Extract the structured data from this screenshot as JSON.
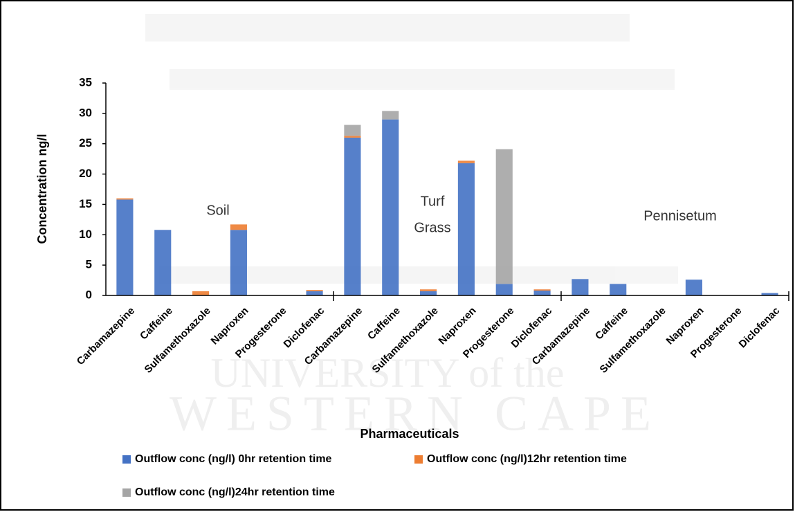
{
  "chart_data": {
    "type": "stacked_bar",
    "x_label": "Pharmaceuticals",
    "y_label": "Concentration ng/l",
    "categories": [
      "Carbamazepine",
      "Caffeine",
      "Sulfamethoxazole",
      "Naproxen",
      "Progesterone",
      "Diclofenac",
      "Carbamazepine",
      "Caffeine",
      "Sulfamethoxazole",
      "Naproxen",
      "Progesterone",
      "Diclofenac",
      "Carbamazepine",
      "Caffeine",
      "Sulfamethoxazole",
      "Naproxen",
      "Progesterone",
      "Diclofenac"
    ],
    "group_labels": [
      [
        "Soil"
      ],
      [
        "Turf",
        "Grass"
      ],
      [
        "Pennisetum"
      ]
    ],
    "series": [
      {
        "name": "Outflow conc (ng/l) 0hr retention time",
        "color": "#4472c4",
        "values": [
          15.8,
          10.8,
          0,
          10.8,
          0,
          0.7,
          26,
          29,
          0.7,
          21.8,
          1.9,
          0.8,
          2.7,
          1.9,
          0,
          2.6,
          0,
          0.4
        ]
      },
      {
        "name": "Outflow conc (ng/l)12hr retention time",
        "color": "#ed7d31",
        "values": [
          0.2,
          0,
          0.7,
          0.9,
          0,
          0.2,
          0.3,
          0,
          0.3,
          0.4,
          0,
          0.2,
          0,
          0,
          0,
          0,
          0,
          0
        ]
      },
      {
        "name": "Outflow conc (ng/l)24hr retention time",
        "color": "#a5a5a5",
        "values": [
          0,
          0,
          0,
          0,
          0,
          0,
          1.8,
          1.4,
          0,
          0,
          22.2,
          0,
          0,
          0,
          0,
          0,
          0,
          0
        ]
      }
    ],
    "ylim": [
      0,
      35
    ],
    "yticks": [
      0,
      5,
      10,
      15,
      20,
      25,
      30,
      35
    ],
    "grid": false,
    "legend": "bottom",
    "watermark": [
      "UNIVERSITY of the",
      "WESTERN CAPE"
    ]
  }
}
